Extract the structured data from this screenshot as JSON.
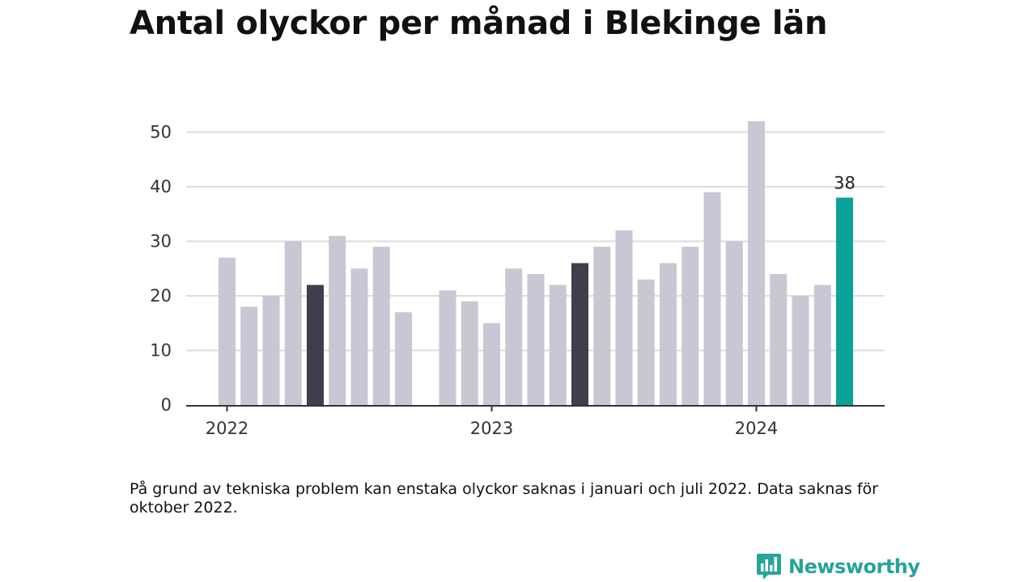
{
  "title": "Antal olyckor per månad i Blekinge län",
  "note": "På grund av tekniska problem kan enstaka olyckor saknas i januari och juli 2022. Data saknas för oktober 2022.",
  "brand": "Newsworthy",
  "colors": {
    "default_bar": "#c9c7d3",
    "highlight_bar": "#3f3e4c",
    "latest_bar": "#0aa39a",
    "grid": "#dddddd",
    "axis": "#333333",
    "brand": "#26a39a"
  },
  "chart_data": {
    "type": "bar",
    "title": "Antal olyckor per månad i Blekinge län",
    "xlabel": "",
    "ylabel": "",
    "ylim": [
      0,
      52
    ],
    "yticks": [
      0,
      10,
      20,
      30,
      40,
      50
    ],
    "grid": true,
    "x_tick_labels": [
      {
        "label": "2022",
        "index": 0
      },
      {
        "label": "2023",
        "index": 12
      },
      {
        "label": "2024",
        "index": 24
      }
    ],
    "categories": [
      "2022-01",
      "2022-02",
      "2022-03",
      "2022-04",
      "2022-05",
      "2022-06",
      "2022-07",
      "2022-08",
      "2022-09",
      "2022-10",
      "2022-11",
      "2022-12",
      "2023-01",
      "2023-02",
      "2023-03",
      "2023-04",
      "2023-05",
      "2023-06",
      "2023-07",
      "2023-08",
      "2023-09",
      "2023-10",
      "2023-11",
      "2023-12",
      "2024-01",
      "2024-02",
      "2024-03",
      "2024-04",
      "2024-05"
    ],
    "values": [
      27,
      18,
      20,
      30,
      22,
      31,
      25,
      29,
      17,
      null,
      21,
      19,
      15,
      25,
      24,
      22,
      26,
      29,
      32,
      23,
      26,
      29,
      39,
      30,
      52,
      24,
      20,
      22,
      38
    ],
    "highlighted": [
      "2022-05",
      "2023-05"
    ],
    "latest": "2024-05",
    "data_labels": [
      {
        "category": "2024-05",
        "text": "38"
      }
    ]
  }
}
